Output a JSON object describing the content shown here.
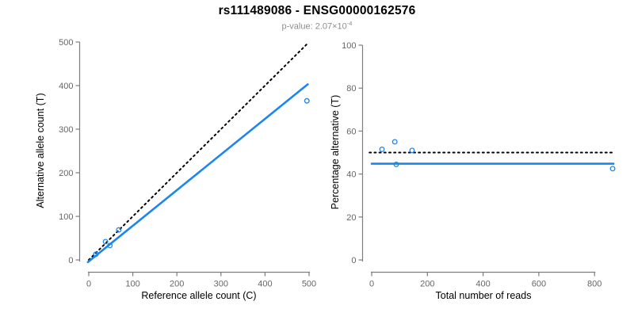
{
  "header": {
    "title": "rs111489086 - ENSG00000162576",
    "subtitle": {
      "text": "p-value: 2.07×10",
      "exponent": "-4"
    }
  },
  "colors": {
    "accent_blue": "#1c86ee",
    "reference_black": "#000000",
    "axis_line": "#7d7d7d",
    "tick_label": "#666666",
    "axis_title": "#000000",
    "subtitle_gray": "#8d8d8d",
    "background": "#ffffff"
  },
  "chart_data": [
    {
      "type": "scatter",
      "panel": "left",
      "xlabel": "Reference allele count (C)",
      "ylabel": "Alternative allele count (T)",
      "xlim": [
        0,
        500
      ],
      "ylim": [
        0,
        500
      ],
      "xticks": [
        0,
        100,
        200,
        300,
        400,
        500
      ],
      "yticks": [
        0,
        100,
        200,
        300,
        400,
        500
      ],
      "grid": false,
      "legend": "none",
      "points": [
        [
          16,
          13
        ],
        [
          38,
          42
        ],
        [
          48,
          33
        ],
        [
          68,
          69
        ],
        [
          495,
          365
        ]
      ],
      "lines": [
        {
          "name": "identity-line",
          "style": "dotted",
          "color": "black",
          "x": [
            0,
            498
          ],
          "y": [
            0,
            498
          ]
        },
        {
          "name": "fit-line",
          "style": "solid",
          "color": "blue",
          "x": [
            -2,
            497
          ],
          "y": [
            -5,
            403
          ]
        }
      ]
    },
    {
      "type": "scatter",
      "panel": "right",
      "xlabel": "Total number of reads",
      "ylabel": "Percentage alternative (T)",
      "xlim": [
        0,
        800
      ],
      "ylim": [
        0,
        100
      ],
      "xticks": [
        0,
        200,
        400,
        600,
        800
      ],
      "yticks": [
        0,
        20,
        40,
        60,
        80,
        100
      ],
      "grid": false,
      "legend": "none",
      "points": [
        [
          37,
          51.5
        ],
        [
          83,
          55
        ],
        [
          88,
          44.5
        ],
        [
          145,
          51
        ],
        [
          865,
          42.5
        ]
      ],
      "lines": [
        {
          "name": "expected-50pct-line",
          "style": "dotted",
          "color": "black",
          "x": [
            -8,
            872
          ],
          "y": [
            50,
            50
          ]
        },
        {
          "name": "fit-line",
          "style": "solid",
          "color": "blue",
          "x": [
            0,
            868
          ],
          "y": [
            44.8,
            44.8
          ]
        }
      ]
    }
  ]
}
